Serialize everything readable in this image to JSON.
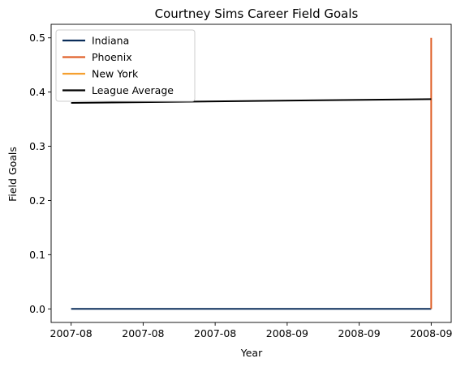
{
  "chart_data": {
    "type": "line",
    "title": "Courtney Sims Career Field Goals",
    "xlabel": "Year",
    "ylabel": "Field Goals",
    "x_tick_labels": [
      "2007-08",
      "2007-08",
      "2007-08",
      "2008-09",
      "2008-09",
      "2008-09"
    ],
    "x_domain": [
      0,
      1
    ],
    "x_ticks": [
      0,
      0.2,
      0.4,
      0.6,
      0.8,
      1.0
    ],
    "ylim": [
      -0.025,
      0.525
    ],
    "y_ticks": [
      0.0,
      0.1,
      0.2,
      0.3,
      0.4,
      0.5
    ],
    "y_tick_labels": [
      "0.0",
      "0.1",
      "0.2",
      "0.3",
      "0.4",
      "0.5"
    ],
    "legend_location": "upper-left",
    "series": [
      {
        "name": "Indiana",
        "color": "#0a2d5a",
        "x": [
          0,
          1
        ],
        "values": [
          0.0,
          0.0
        ]
      },
      {
        "name": "Phoenix",
        "color": "#e0622a",
        "x": [
          1,
          1
        ],
        "values": [
          0.0,
          0.5
        ]
      },
      {
        "name": "New York",
        "color": "#f5a030",
        "x": [],
        "values": []
      },
      {
        "name": "League Average",
        "color": "#000000",
        "x": [
          0,
          1
        ],
        "values": [
          0.38,
          0.387
        ]
      }
    ]
  }
}
